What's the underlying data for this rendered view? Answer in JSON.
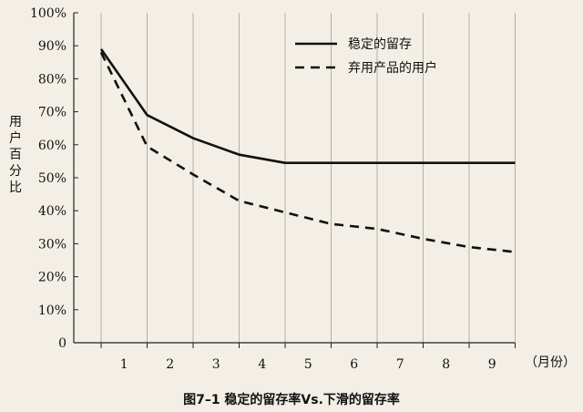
{
  "chart_data": {
    "type": "line",
    "x": [
      0,
      1,
      2,
      3,
      4,
      5,
      6,
      7,
      8,
      9
    ],
    "xticks": [
      "1",
      "2",
      "3",
      "4",
      "5",
      "6",
      "7",
      "8",
      "9"
    ],
    "xunit": "（月份）",
    "ylabel": "用户百分比",
    "yticks": [
      "0",
      "10%",
      "20%",
      "30%",
      "40%",
      "50%",
      "60%",
      "70%",
      "80%",
      "90%",
      "100%"
    ],
    "ylim": [
      0,
      100
    ],
    "grid": "vertical",
    "legend": "top-right",
    "series": [
      {
        "name": "稳定的留存",
        "style": "solid",
        "values": [
          89,
          69,
          62,
          57,
          54.5,
          54.5,
          54.5,
          54.5,
          54.5,
          54.5
        ]
      },
      {
        "name": "弃用产品的用户",
        "style": "dashed",
        "values": [
          88,
          59.5,
          51,
          43,
          39.5,
          36,
          34.5,
          31.5,
          29,
          27.5
        ]
      }
    ],
    "caption": "图7–1 稳定的留存率Vs.下滑的留存率"
  }
}
